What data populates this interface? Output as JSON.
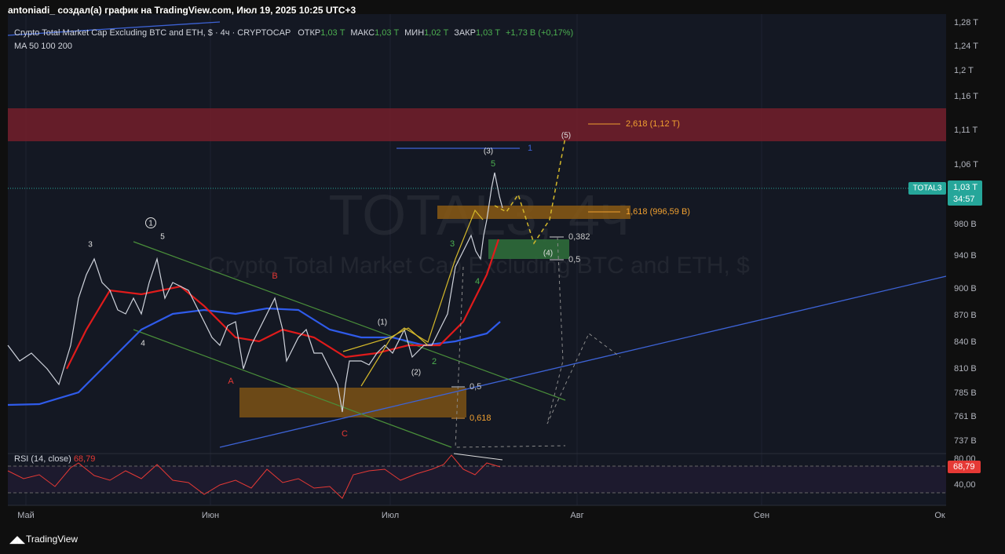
{
  "header": {
    "title": "antoniadi_ создал(а) график на TradingView.com, Июл 19, 2025 10:25 UTC+3"
  },
  "legend": {
    "symbol": "Crypto Total Market Cap Excluding BTC and ETH, $ · 4ч · CRYPTOCAP",
    "open_label": "ОТКР",
    "open": "1,03 T",
    "high_label": "МАКС",
    "high": "1,03 T",
    "low_label": "МИН",
    "low": "1,02 T",
    "close_label": "ЗАКР",
    "close": "1,03 T",
    "change": "+1,73 B (+0,17%)",
    "ma": "MA 50 100 200"
  },
  "watermark": {
    "ticker": "TOTAL3, 4ч",
    "name": "Crypto Total Market Cap Excluding BTC and ETH, $"
  },
  "price_axis": [
    "1,28 T",
    "1,24 T",
    "1,2 T",
    "1,16 T",
    "1,11 T",
    "1,06 T",
    "980 B",
    "940 B",
    "900 B",
    "870 B",
    "840 B",
    "810 B",
    "785 B",
    "761 B",
    "737 B"
  ],
  "price_tag": {
    "ticker": "TOTAL3",
    "price": "1,03 T",
    "countdown": "34:57"
  },
  "rsi": {
    "label": "RSI (14, close)",
    "value": "68,79",
    "axis": [
      "80,00",
      "40,00"
    ]
  },
  "time_axis": [
    "Май",
    "Июн",
    "Июл",
    "Авг",
    "Сен",
    "Ок"
  ],
  "annotations": [
    "2,618 (1,12 T)",
    "1,618 (996,59 B)",
    "0,382",
    "0,5",
    "0,5",
    "0,618",
    "(3)",
    "(5)",
    "(4)",
    "(1)",
    "(2)",
    "1",
    "5",
    "3",
    "4",
    "2",
    "3",
    "5",
    "4",
    "A",
    "B",
    "C",
    "1",
    "5"
  ],
  "footer": {
    "brand": "TradingView"
  }
}
